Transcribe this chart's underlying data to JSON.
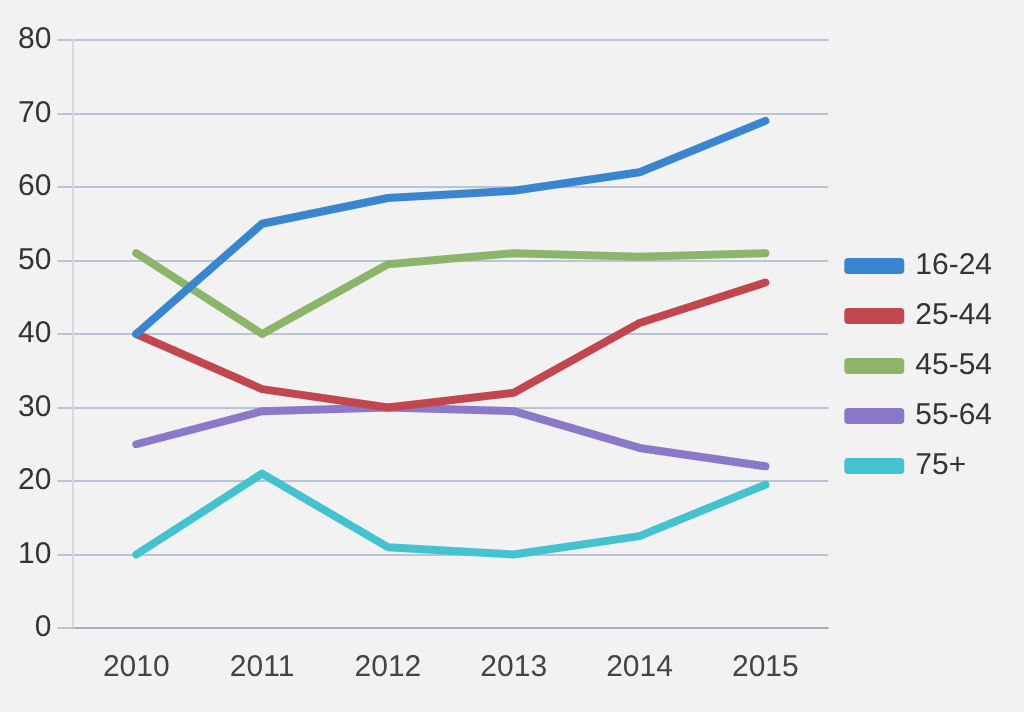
{
  "chart_data": {
    "type": "line",
    "categories": [
      "2010",
      "2011",
      "2012",
      "2013",
      "2014",
      "2015"
    ],
    "series": [
      {
        "name": "16-24",
        "color": "#3a85d0",
        "values": [
          40,
          55,
          58.5,
          59.5,
          62,
          69
        ]
      },
      {
        "name": "25-44",
        "color": "#c2464e",
        "values": [
          40,
          32.5,
          30,
          32,
          41.5,
          47
        ]
      },
      {
        "name": "45-54",
        "color": "#8cb46a",
        "values": [
          51,
          40,
          49.5,
          51,
          50.5,
          51
        ]
      },
      {
        "name": "55-64",
        "color": "#8c78c8",
        "values": [
          25,
          29.5,
          30,
          29.5,
          24.5,
          22
        ]
      },
      {
        "name": "75+",
        "color": "#44c2cf",
        "values": [
          10,
          21,
          11,
          10,
          12.5,
          19.5
        ]
      }
    ],
    "ylim": [
      0,
      80
    ],
    "yticks": [
      0,
      10,
      20,
      30,
      40,
      50,
      60,
      70,
      80
    ],
    "grid": "y",
    "legend": "right",
    "marker": "none",
    "line_style": "solid"
  }
}
